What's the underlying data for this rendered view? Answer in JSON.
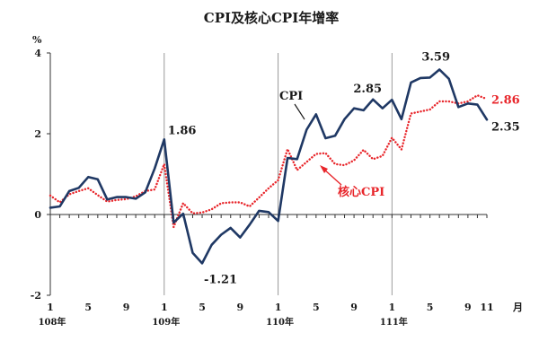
{
  "chart_data": {
    "type": "line",
    "title": "CPI及核心CPI年增率",
    "ylabel": "%",
    "xlabel": "月",
    "ylim": [
      -2,
      4
    ],
    "yticks": [
      -2,
      0,
      2,
      4
    ],
    "x_tick_labels": [
      "1",
      "5",
      "9",
      "1",
      "5",
      "9",
      "1",
      "5",
      "9",
      "1",
      "5",
      "9",
      "11"
    ],
    "x_tick_months": [
      1,
      5,
      9,
      13,
      17,
      21,
      25,
      29,
      33,
      37,
      41,
      45,
      47
    ],
    "year_labels": [
      {
        "label": "108年",
        "month": 1
      },
      {
        "label": "109年",
        "month": 13
      },
      {
        "label": "110年",
        "month": 25
      },
      {
        "label": "111年",
        "month": 37
      }
    ],
    "year_dividers": [
      13,
      25,
      37
    ],
    "series": [
      {
        "name": "CPI",
        "color": "#1f3864",
        "style": "solid",
        "values": [
          0.17,
          0.2,
          0.58,
          0.66,
          0.93,
          0.87,
          0.37,
          0.43,
          0.43,
          0.39,
          0.55,
          1.14,
          1.86,
          -0.2,
          0.02,
          -0.95,
          -1.21,
          -0.75,
          -0.5,
          -0.33,
          -0.57,
          -0.25,
          0.09,
          0.06,
          -0.16,
          1.4,
          1.37,
          2.1,
          2.48,
          1.89,
          1.95,
          2.36,
          2.63,
          2.58,
          2.85,
          2.63,
          2.84,
          2.36,
          3.27,
          3.38,
          3.39,
          3.59,
          3.36,
          2.66,
          2.75,
          2.72,
          2.35
        ]
      },
      {
        "name": "核心CPI",
        "color": "#e8262b",
        "style": "dotted",
        "values": [
          0.47,
          0.3,
          0.5,
          0.58,
          0.65,
          0.48,
          0.32,
          0.36,
          0.38,
          0.45,
          0.58,
          0.62,
          1.25,
          -0.31,
          0.28,
          0.03,
          0.05,
          0.13,
          0.28,
          0.3,
          0.3,
          0.2,
          0.42,
          0.65,
          0.85,
          1.62,
          1.1,
          1.3,
          1.5,
          1.52,
          1.25,
          1.22,
          1.34,
          1.6,
          1.37,
          1.45,
          1.9,
          1.61,
          2.5,
          2.55,
          2.6,
          2.8,
          2.8,
          2.75,
          2.8,
          2.95,
          2.86
        ]
      }
    ],
    "annotations": [
      {
        "text": "1.86",
        "month": 13,
        "value": 1.86,
        "color": "#1a1a1a"
      },
      {
        "text": "-1.21",
        "month": 17,
        "value": -1.21,
        "color": "#1a1a1a"
      },
      {
        "text": "2.85",
        "month": 35,
        "value": 2.85,
        "color": "#1a1a1a"
      },
      {
        "text": "3.59",
        "month": 42,
        "value": 3.59,
        "color": "#1a1a1a"
      },
      {
        "text": "2.86",
        "month": 47,
        "value": 2.86,
        "color": "#e8262b"
      },
      {
        "text": "2.35",
        "month": 47,
        "value": 2.35,
        "color": "#1a1a1a"
      }
    ]
  }
}
